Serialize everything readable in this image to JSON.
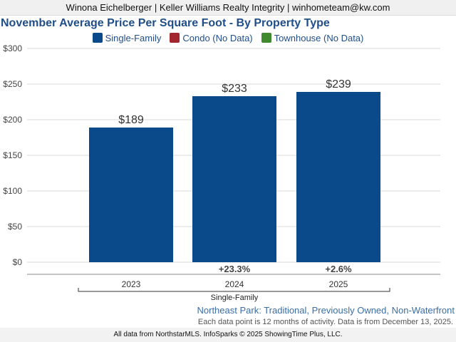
{
  "agent_line": "Winona Eichelberger | Keller Williams Realty Integrity | winhometeam@kw.com",
  "colors": {
    "single_family": "#0a4a8a",
    "condo": "#a3262e",
    "townhouse": "#3f8a2e",
    "title": "#1f4e89",
    "grid": "#d9d9d9"
  },
  "chart_data": {
    "type": "bar",
    "title": "November Average Price Per Square Foot - By Property Type",
    "legend": [
      {
        "name": "Single-Family",
        "color_key": "single_family"
      },
      {
        "name": "Condo (No Data)",
        "color_key": "condo"
      },
      {
        "name": "Townhouse (No Data)",
        "color_key": "townhouse"
      }
    ],
    "legend_position": "top-center",
    "categories": [
      "2023",
      "2024",
      "2025"
    ],
    "series": [
      {
        "name": "Single-Family",
        "values": [
          189,
          233,
          239
        ],
        "value_labels": [
          "$189",
          "$233",
          "$239"
        ]
      }
    ],
    "change_labels": [
      "",
      "+23.3%",
      "+2.6%"
    ],
    "group_label": "Single-Family",
    "y_ticks": [
      "$0",
      "$50",
      "$100",
      "$150",
      "$200",
      "$250",
      "$300"
    ],
    "ylim": [
      0,
      300
    ],
    "grid": true
  },
  "subtitle": "Northeast Park: Traditional, Previously Owned, Non-Waterfront",
  "note": "Each data point is 12 months of activity. Data is from December 13, 2025.",
  "footer": "All data from NorthstarMLS. InfoSparks © 2025 ShowingTime Plus, LLC."
}
